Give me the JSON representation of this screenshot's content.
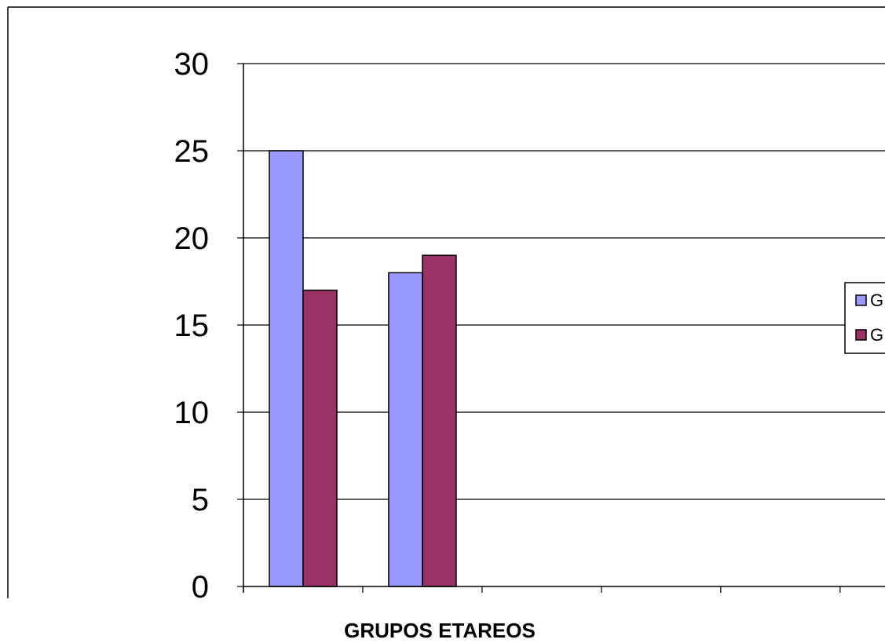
{
  "chart_data": {
    "type": "bar",
    "title": "",
    "xlabel": "GRUPOS ETAREOS",
    "ylabel": "",
    "ylim": [
      0,
      30
    ],
    "yticks": [
      "0",
      "5",
      "10",
      "15",
      "20",
      "25",
      "30"
    ],
    "grid": true,
    "legend": "right",
    "categories": [
      "",
      "",
      "",
      "",
      ""
    ],
    "series": [
      {
        "name": "G",
        "color": "#9999ff",
        "values": [
          25,
          18,
          null,
          null,
          null
        ]
      },
      {
        "name": "G",
        "color": "#993366",
        "values": [
          17,
          19,
          null,
          null,
          null
        ]
      }
    ]
  }
}
